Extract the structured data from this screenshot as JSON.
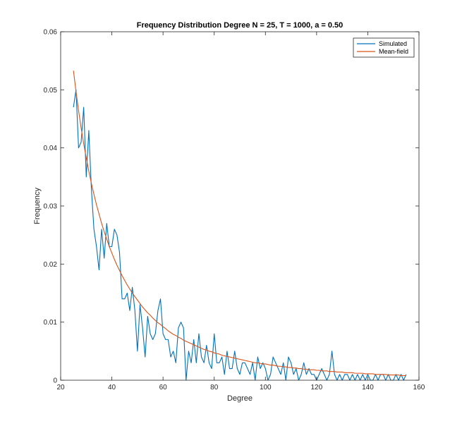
{
  "chart_data": {
    "type": "line",
    "title": "Frequency Distribution Degree N = 25, T = 1000, a = 0.50",
    "xlabel": "Degree",
    "ylabel": "Frequency",
    "xlim": [
      20,
      160
    ],
    "ylim": [
      0,
      0.06
    ],
    "xticks": [
      20,
      40,
      60,
      80,
      100,
      120,
      140,
      160
    ],
    "yticks": [
      0,
      0.01,
      0.02,
      0.03,
      0.04,
      0.05,
      0.06
    ],
    "ytick_labels": [
      "0",
      "0.01",
      "0.02",
      "0.03",
      "0.04",
      "0.05",
      "0.06"
    ],
    "grid": false,
    "legend_position": "top-right",
    "series": [
      {
        "name": "Simulated",
        "color": "#0072BD",
        "x": [
          25,
          26,
          27,
          28,
          29,
          30,
          31,
          32,
          33,
          34,
          35,
          36,
          37,
          38,
          39,
          40,
          41,
          42,
          43,
          44,
          45,
          46,
          47,
          48,
          49,
          50,
          51,
          52,
          53,
          54,
          55,
          56,
          57,
          58,
          59,
          60,
          61,
          62,
          63,
          64,
          65,
          66,
          67,
          68,
          69,
          70,
          71,
          72,
          73,
          74,
          75,
          76,
          77,
          78,
          79,
          80,
          81,
          82,
          83,
          84,
          85,
          86,
          87,
          88,
          89,
          90,
          91,
          92,
          93,
          94,
          95,
          96,
          97,
          98,
          99,
          100,
          101,
          102,
          103,
          104,
          105,
          106,
          107,
          108,
          109,
          110,
          111,
          112,
          113,
          114,
          115,
          116,
          117,
          118,
          119,
          120,
          121,
          122,
          123,
          124,
          125,
          126,
          127,
          128,
          129,
          130,
          131,
          132,
          133,
          134,
          135,
          136,
          137,
          138,
          139,
          140,
          141,
          142,
          143,
          144,
          145,
          146,
          147,
          148,
          149,
          150,
          151,
          152,
          153,
          154,
          155
        ],
        "y": [
          0.047,
          0.05,
          0.04,
          0.041,
          0.047,
          0.035,
          0.043,
          0.033,
          0.026,
          0.023,
          0.019,
          0.026,
          0.021,
          0.027,
          0.023,
          0.023,
          0.026,
          0.025,
          0.022,
          0.014,
          0.014,
          0.015,
          0.012,
          0.016,
          0.012,
          0.005,
          0.013,
          0.009,
          0.004,
          0.011,
          0.008,
          0.007,
          0.008,
          0.012,
          0.014,
          0.008,
          0.007,
          0.007,
          0.004,
          0.005,
          0.003,
          0.009,
          0.01,
          0.009,
          0.0,
          0.005,
          0.003,
          0.007,
          0.003,
          0.008,
          0.004,
          0.003,
          0.006,
          0.003,
          0.002,
          0.008,
          0.003,
          0.003,
          0.004,
          0.001,
          0.005,
          0.002,
          0.002,
          0.005,
          0.002,
          0.001,
          0.003,
          0.003,
          0.002,
          0.001,
          0.003,
          0.0,
          0.004,
          0.002,
          0.003,
          0.002,
          0.0,
          0.001,
          0.004,
          0.003,
          0.002,
          0.001,
          0.003,
          0.0,
          0.004,
          0.003,
          0.001,
          0.002,
          0.0,
          0.001,
          0.003,
          0.001,
          0.002,
          0.001,
          0.001,
          0.0,
          0.001,
          0.002,
          0.001,
          0.0,
          0.001,
          0.005,
          0.001,
          0.0,
          0.001,
          0.0,
          0.001,
          0.001,
          0.0,
          0.001,
          0.0,
          0.001,
          0.0,
          0.001,
          0.0,
          0.001,
          0.0,
          0.0,
          0.001,
          0.0,
          0.001,
          0.001,
          0.0,
          0.001,
          0.0,
          0.0,
          0.001,
          0.0,
          0.001,
          0.0,
          0.001
        ]
      },
      {
        "name": "Mean-field",
        "color": "#D95319",
        "x": [
          25,
          26,
          27,
          28,
          29,
          30,
          31,
          32,
          33,
          34,
          35,
          36,
          37,
          38,
          39,
          40,
          41,
          42,
          43,
          44,
          45,
          46,
          47,
          48,
          49,
          50,
          51,
          52,
          53,
          54,
          55,
          56,
          57,
          58,
          59,
          60,
          61,
          62,
          63,
          64,
          65,
          66,
          67,
          68,
          69,
          70,
          71,
          72,
          73,
          74,
          75,
          76,
          77,
          78,
          79,
          80,
          81,
          82,
          83,
          84,
          85,
          86,
          87,
          88,
          89,
          90,
          91,
          92,
          93,
          94,
          95,
          96,
          97,
          98,
          99,
          100,
          101,
          102,
          103,
          104,
          105,
          106,
          107,
          108,
          109,
          110,
          111,
          112,
          113,
          114,
          115,
          116,
          117,
          118,
          119,
          120,
          121,
          122,
          123,
          124,
          125,
          126,
          127,
          128,
          129,
          130,
          131,
          132,
          133,
          134,
          135,
          136,
          137,
          138,
          139,
          140,
          141,
          142,
          143,
          144,
          145,
          146,
          147,
          148,
          149,
          150,
          151,
          152,
          153,
          154,
          155
        ],
        "y": [
          0.0533,
          0.0497,
          0.0464,
          0.0434,
          0.0407,
          0.0383,
          0.036,
          0.0339,
          0.032,
          0.0302,
          0.0286,
          0.027,
          0.0256,
          0.0243,
          0.023,
          0.0219,
          0.0208,
          0.0198,
          0.0189,
          0.018,
          0.0172,
          0.0164,
          0.0157,
          0.015,
          0.0144,
          0.0138,
          0.0132,
          0.0126,
          0.0121,
          0.0116,
          0.0112,
          0.0107,
          0.0103,
          0.0099,
          0.0096,
          0.0092,
          0.0089,
          0.0085,
          0.0082,
          0.0079,
          0.0077,
          0.0074,
          0.0072,
          0.0069,
          0.0067,
          0.0065,
          0.0063,
          0.0061,
          0.0059,
          0.0057,
          0.0055,
          0.0053,
          0.0052,
          0.005,
          0.0049,
          0.0047,
          0.0046,
          0.0045,
          0.0043,
          0.0042,
          0.0041,
          0.004,
          0.0039,
          0.0038,
          0.0037,
          0.0036,
          0.0035,
          0.0034,
          0.0033,
          0.0032,
          0.0031,
          0.003,
          0.003,
          0.0029,
          0.0028,
          0.0028,
          0.0027,
          0.0026,
          0.0026,
          0.0025,
          0.0024,
          0.0024,
          0.0023,
          0.0023,
          0.0022,
          0.0022,
          0.0021,
          0.0021,
          0.002,
          0.002,
          0.0019,
          0.0019,
          0.0018,
          0.0018,
          0.0018,
          0.0017,
          0.0017,
          0.0016,
          0.0016,
          0.0016,
          0.0015,
          0.0015,
          0.0015,
          0.0014,
          0.0014,
          0.0014,
          0.0013,
          0.0013,
          0.0013,
          0.0013,
          0.0012,
          0.0012,
          0.0012,
          0.0012,
          0.0011,
          0.0011,
          0.0011,
          0.0011,
          0.001,
          0.001,
          0.001,
          0.001,
          0.001,
          0.0009,
          0.0009,
          0.0009,
          0.0009,
          0.0009,
          0.0008,
          0.0008,
          0.0008
        ]
      }
    ]
  }
}
